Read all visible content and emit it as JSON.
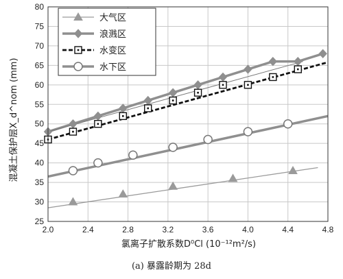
{
  "chart_data": {
    "type": "line",
    "title": "",
    "caption": "(a) 暴露龄期为 28d",
    "xlabel": "氯离子扩散系数D⁰Cl (10⁻¹²m²/s)",
    "ylabel": "混凝土保护层X_d^nom (mm)",
    "xlim": [
      2.0,
      4.8
    ],
    "ylim": [
      25,
      80
    ],
    "xticks": [
      2.0,
      2.4,
      2.8,
      3.2,
      3.6,
      4.0,
      4.4,
      4.8
    ],
    "yticks": [
      25,
      30,
      35,
      40,
      45,
      50,
      55,
      60,
      65,
      70,
      75,
      80
    ],
    "grid": true,
    "legend_position": "top-left",
    "series": [
      {
        "name": "大气区",
        "marker": "triangle",
        "color": "#9a9a9a",
        "line": "thin-solid",
        "x": [
          2.25,
          2.75,
          3.25,
          3.85,
          4.45
        ],
        "y": [
          30,
          32,
          34,
          36,
          38
        ],
        "trend": [
          [
            2.0,
            28.5
          ],
          [
            4.7,
            38.8
          ]
        ]
      },
      {
        "name": "浪溅区",
        "marker": "diamond",
        "color": "#8f8f8f",
        "line": "thick-solid",
        "x": [
          2.0,
          2.25,
          2.5,
          2.75,
          3.0,
          3.25,
          3.5,
          3.75,
          4.0,
          4.25,
          4.5,
          4.75
        ],
        "y": [
          48,
          50,
          52,
          54,
          56,
          58,
          60,
          62,
          64,
          66,
          66,
          68
        ],
        "trend": [
          [
            2.0,
            48
          ],
          [
            4.55,
            66
          ]
        ]
      },
      {
        "name": "水变区",
        "marker": "square",
        "color": "#111111",
        "line": "dashed",
        "x": [
          2.0,
          2.25,
          2.5,
          2.75,
          3.0,
          3.25,
          3.5,
          3.75,
          4.0,
          4.25,
          4.5
        ],
        "y": [
          46,
          48,
          50,
          52,
          54,
          56,
          58,
          60,
          60,
          62,
          64
        ],
        "trend": [
          [
            2.0,
            46
          ],
          [
            4.8,
            65.8
          ]
        ]
      },
      {
        "name": "水下区",
        "marker": "circle",
        "color": "#8f8f8f",
        "line": "thick-solid",
        "x": [
          2.25,
          2.5,
          2.75,
          3.0,
          3.25,
          3.5,
          3.75,
          4.0,
          4.25,
          4.5
        ],
        "y": [
          38,
          40,
          42,
          44,
          46,
          48,
          48,
          50,
          50,
          50
        ],
        "marker_points": [
          [
            2.25,
            38
          ],
          [
            2.5,
            40
          ],
          [
            2.85,
            42
          ],
          [
            3.25,
            44
          ],
          [
            3.6,
            46
          ],
          [
            4.0,
            48
          ],
          [
            4.4,
            50
          ]
        ],
        "trend": [
          [
            2.0,
            36.5
          ],
          [
            4.8,
            52
          ]
        ]
      }
    ]
  }
}
